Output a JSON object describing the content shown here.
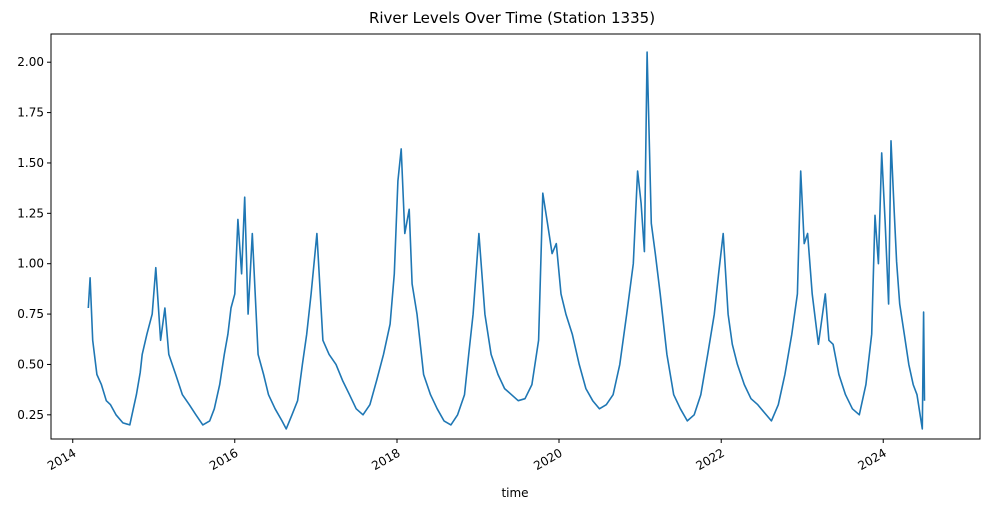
{
  "chart_data": {
    "type": "line",
    "title": "River Levels Over Time (Station 1335)",
    "xlabel": "time",
    "ylabel": "",
    "x_tick_labels": [
      "2014",
      "2016",
      "2018",
      "2020",
      "2022",
      "2024"
    ],
    "x_ticks": [
      "2014-01-01",
      "2016-01-01",
      "2018-01-01",
      "2020-01-01",
      "2022-01-01",
      "2024-01-01"
    ],
    "xlim": [
      "2013-09-25",
      "2025-03-12"
    ],
    "y_tick_labels": [
      "0.25",
      "0.50",
      "0.75",
      "1.00",
      "1.25",
      "1.50",
      "1.75",
      "2.00"
    ],
    "y_ticks": [
      0.25,
      0.5,
      0.75,
      1.0,
      1.25,
      1.5,
      1.75,
      2.0
    ],
    "ylim": [
      0.13,
      2.14
    ],
    "grid": false,
    "legend": "none",
    "colors": {
      "line": "#1f77b4"
    },
    "series": [
      {
        "x": [
          "2014-03-12",
          "2014-03-20",
          "2014-04-01",
          "2014-04-20",
          "2014-05-10",
          "2014-06-01",
          "2014-06-20",
          "2014-07-15",
          "2014-08-15",
          "2014-09-15",
          "2014-10-01",
          "2014-10-15",
          "2014-11-01",
          "2014-11-10",
          "2014-12-01",
          "2014-12-25",
          "2015-01-10",
          "2015-02-01",
          "2015-02-20",
          "2015-03-10",
          "2015-04-10",
          "2015-05-10",
          "2015-06-10",
          "2015-07-10",
          "2015-08-10",
          "2015-09-10",
          "2015-10-01",
          "2015-10-25",
          "2015-11-15",
          "2015-12-01",
          "2015-12-15",
          "2016-01-01",
          "2016-01-15",
          "2016-02-01",
          "2016-02-15",
          "2016-03-01",
          "2016-03-20",
          "2016-04-15",
          "2016-05-10",
          "2016-06-01",
          "2016-07-01",
          "2016-08-01",
          "2016-08-20",
          "2016-09-15",
          "2016-10-10",
          "2016-11-01",
          "2016-11-20",
          "2016-12-10",
          "2017-01-05",
          "2017-02-01",
          "2017-03-01",
          "2017-04-01",
          "2017-05-01",
          "2017-06-01",
          "2017-07-01",
          "2017-08-01",
          "2017-09-01",
          "2017-10-01",
          "2017-11-01",
          "2017-12-01",
          "2017-12-20",
          "2018-01-05",
          "2018-01-20",
          "2018-02-05",
          "2018-02-25",
          "2018-03-10",
          "2018-04-01",
          "2018-05-01",
          "2018-06-01",
          "2018-07-01",
          "2018-08-01",
          "2018-09-01",
          "2018-10-01",
          "2018-11-01",
          "2018-11-20",
          "2018-12-10",
          "2019-01-05",
          "2019-02-01",
          "2019-03-01",
          "2019-04-01",
          "2019-05-01",
          "2019-06-01",
          "2019-07-01",
          "2019-08-01",
          "2019-09-01",
          "2019-10-01",
          "2019-10-20",
          "2019-11-10",
          "2019-12-01",
          "2019-12-20",
          "2020-01-10",
          "2020-02-01",
          "2020-03-01",
          "2020-04-01",
          "2020-05-01",
          "2020-06-01",
          "2020-07-01",
          "2020-08-01",
          "2020-09-01",
          "2020-10-01",
          "2020-11-01",
          "2020-12-01",
          "2020-12-20",
          "2021-01-05",
          "2021-01-20",
          "2021-02-01",
          "2021-02-20",
          "2021-03-10",
          "2021-04-01",
          "2021-05-01",
          "2021-06-01",
          "2021-07-01",
          "2021-08-01",
          "2021-09-01",
          "2021-10-01",
          "2021-11-01",
          "2021-12-01",
          "2021-12-20",
          "2022-01-10",
          "2022-02-01",
          "2022-02-20",
          "2022-03-15",
          "2022-04-15",
          "2022-05-15",
          "2022-06-15",
          "2022-07-15",
          "2022-08-15",
          "2022-09-15",
          "2022-10-15",
          "2022-11-15",
          "2022-12-10",
          "2022-12-25",
          "2023-01-10",
          "2023-01-25",
          "2023-02-15",
          "2023-03-15",
          "2023-04-15",
          "2023-05-01",
          "2023-05-20",
          "2023-06-15",
          "2023-07-15",
          "2023-08-15",
          "2023-09-15",
          "2023-10-15",
          "2023-11-10",
          "2023-11-25",
          "2023-12-10",
          "2023-12-25",
          "2024-01-10",
          "2024-01-25",
          "2024-02-05",
          "2024-02-20",
          "2024-03-01",
          "2024-03-15",
          "2024-04-05",
          "2024-04-25",
          "2024-05-15",
          "2024-06-01",
          "2024-06-15",
          "2024-06-25",
          "2024-07-01",
          "2024-07-05"
        ],
        "y": [
          0.78,
          0.93,
          0.62,
          0.45,
          0.4,
          0.32,
          0.3,
          0.25,
          0.21,
          0.2,
          0.28,
          0.35,
          0.46,
          0.55,
          0.65,
          0.75,
          0.98,
          0.62,
          0.78,
          0.55,
          0.45,
          0.35,
          0.3,
          0.25,
          0.2,
          0.22,
          0.28,
          0.4,
          0.55,
          0.65,
          0.78,
          0.85,
          1.22,
          0.95,
          1.33,
          0.75,
          1.15,
          0.55,
          0.45,
          0.35,
          0.28,
          0.22,
          0.18,
          0.25,
          0.32,
          0.5,
          0.65,
          0.85,
          1.15,
          0.62,
          0.55,
          0.5,
          0.42,
          0.35,
          0.28,
          0.25,
          0.3,
          0.42,
          0.55,
          0.7,
          0.95,
          1.41,
          1.57,
          1.15,
          1.27,
          0.9,
          0.75,
          0.45,
          0.35,
          0.28,
          0.22,
          0.2,
          0.25,
          0.35,
          0.55,
          0.75,
          1.15,
          0.75,
          0.55,
          0.45,
          0.38,
          0.35,
          0.32,
          0.33,
          0.4,
          0.62,
          1.35,
          1.2,
          1.05,
          1.1,
          0.85,
          0.75,
          0.65,
          0.5,
          0.38,
          0.32,
          0.28,
          0.3,
          0.35,
          0.5,
          0.75,
          1.0,
          1.46,
          1.3,
          1.06,
          2.05,
          1.2,
          1.05,
          0.85,
          0.55,
          0.35,
          0.28,
          0.22,
          0.25,
          0.35,
          0.55,
          0.75,
          0.95,
          1.15,
          0.75,
          0.6,
          0.5,
          0.4,
          0.33,
          0.3,
          0.26,
          0.22,
          0.3,
          0.45,
          0.65,
          0.85,
          1.46,
          1.1,
          1.15,
          0.85,
          0.6,
          0.85,
          0.62,
          0.6,
          0.45,
          0.35,
          0.28,
          0.25,
          0.4,
          0.65,
          1.24,
          1.0,
          1.55,
          1.2,
          0.8,
          1.61,
          1.25,
          1.01,
          0.8,
          0.65,
          0.5,
          0.4,
          0.35,
          0.25,
          0.18,
          0.76,
          0.32
        ]
      }
    ]
  }
}
